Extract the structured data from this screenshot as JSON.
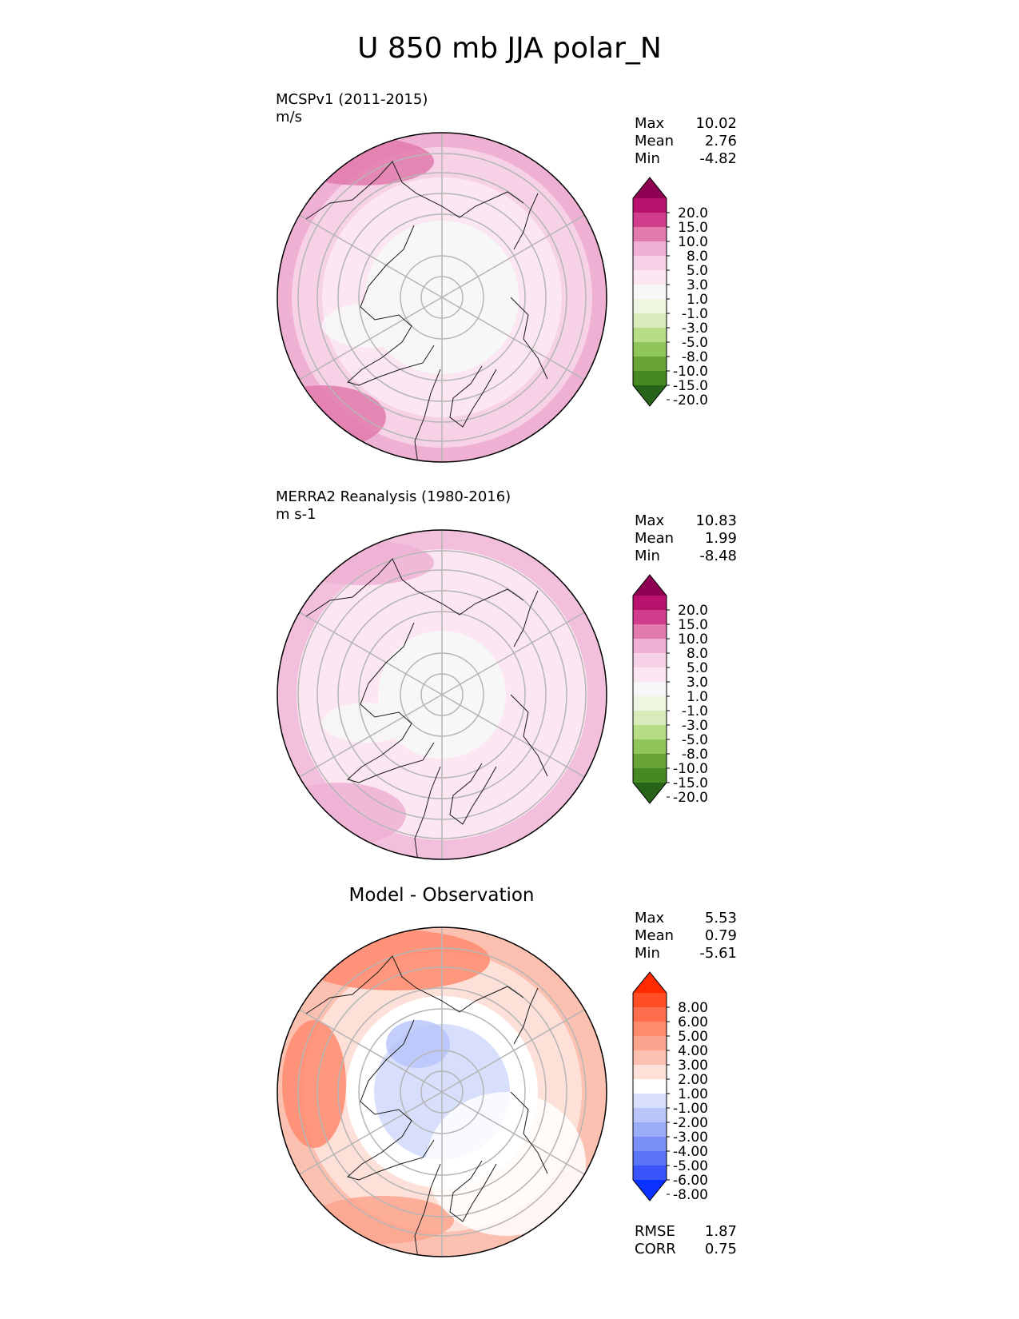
{
  "title": "U 850 mb JJA polar_N",
  "panels": [
    {
      "name": "MCSPv1 (2011-2015)",
      "units": "m/s",
      "stats": {
        "max": "10.02",
        "mean": "2.76",
        "min": "-4.82"
      },
      "colorbar": {
        "ticks": [
          "20.0",
          "15.0",
          "10.0",
          "8.0",
          "5.0",
          "3.0",
          "1.0",
          "-1.0",
          "-3.0",
          "-5.0",
          "-8.0",
          "-10.0",
          "-15.0",
          "-20.0"
        ],
        "colors": [
          "#8e0152",
          "#b8116e",
          "#d13d8c",
          "#e27aac",
          "#eeb0d3",
          "#f7d2e7",
          "#fbe6f1",
          "#f7f7f7",
          "#eef5e1",
          "#d8ecbb",
          "#b7de87",
          "#8fc55b",
          "#68a337",
          "#468923",
          "#276419"
        ]
      }
    },
    {
      "name": "MERRA2 Reanalysis (1980-2016)",
      "units": "m s-1",
      "stats": {
        "max": "10.83",
        "mean": "1.99",
        "min": "-8.48"
      },
      "colorbar": {
        "ticks": [
          "20.0",
          "15.0",
          "10.0",
          "8.0",
          "5.0",
          "3.0",
          "1.0",
          "-1.0",
          "-3.0",
          "-5.0",
          "-8.0",
          "-10.0",
          "-15.0",
          "-20.0"
        ],
        "colors": [
          "#8e0152",
          "#b8116e",
          "#d13d8c",
          "#e27aac",
          "#eeb0d3",
          "#f7d2e7",
          "#fbe6f1",
          "#f7f7f7",
          "#eef5e1",
          "#d8ecbb",
          "#b7de87",
          "#8fc55b",
          "#68a337",
          "#468923",
          "#276419"
        ]
      }
    },
    {
      "title": "Model - Observation",
      "stats": {
        "max": "5.53",
        "mean": "0.79",
        "min": "-5.61"
      },
      "colorbar": {
        "ticks": [
          "8.00",
          "6.00",
          "5.00",
          "4.00",
          "3.00",
          "2.00",
          "1.00",
          "-1.00",
          "-2.00",
          "-3.00",
          "-4.00",
          "-5.00",
          "-6.00",
          "-8.00"
        ],
        "colors": [
          "#ff2a00",
          "#ff4d24",
          "#ff6e4c",
          "#ff8a6e",
          "#fca58e",
          "#fcc0b0",
          "#fde0d8",
          "#ffffff",
          "#d8dffc",
          "#bac6fa",
          "#9bacf8",
          "#7b90f7",
          "#5b73f7",
          "#3955f9",
          "#0a31ff"
        ]
      },
      "rmse": "1.87",
      "corr": "0.75"
    }
  ],
  "labels": {
    "max": "Max",
    "mean": "Mean",
    "min": "Min",
    "rmse": "RMSE",
    "corr": "CORR"
  },
  "chart_data": [
    {
      "type": "heatmap",
      "title": "MCSPv1 (2011-2015)",
      "units": "m/s",
      "projection": "north polar stereographic",
      "color_levels": [
        -20,
        -15,
        -10,
        -8,
        -5,
        -3,
        -1,
        1,
        3,
        5,
        8,
        10,
        15,
        20
      ],
      "stats": {
        "max": 10.02,
        "mean": 2.76,
        "min": -4.82
      }
    },
    {
      "type": "heatmap",
      "title": "MERRA2 Reanalysis (1980-2016)",
      "units": "m s-1",
      "projection": "north polar stereographic",
      "color_levels": [
        -20,
        -15,
        -10,
        -8,
        -5,
        -3,
        -1,
        1,
        3,
        5,
        8,
        10,
        15,
        20
      ],
      "stats": {
        "max": 10.83,
        "mean": 1.99,
        "min": -8.48
      }
    },
    {
      "type": "heatmap",
      "title": "Model - Observation",
      "projection": "north polar stereographic",
      "color_levels": [
        -8,
        -6,
        -5,
        -4,
        -3,
        -2,
        -1,
        1,
        2,
        3,
        4,
        5,
        6,
        8
      ],
      "stats": {
        "max": 5.53,
        "mean": 0.79,
        "min": -5.61,
        "rmse": 1.87,
        "corr": 0.75
      }
    }
  ]
}
